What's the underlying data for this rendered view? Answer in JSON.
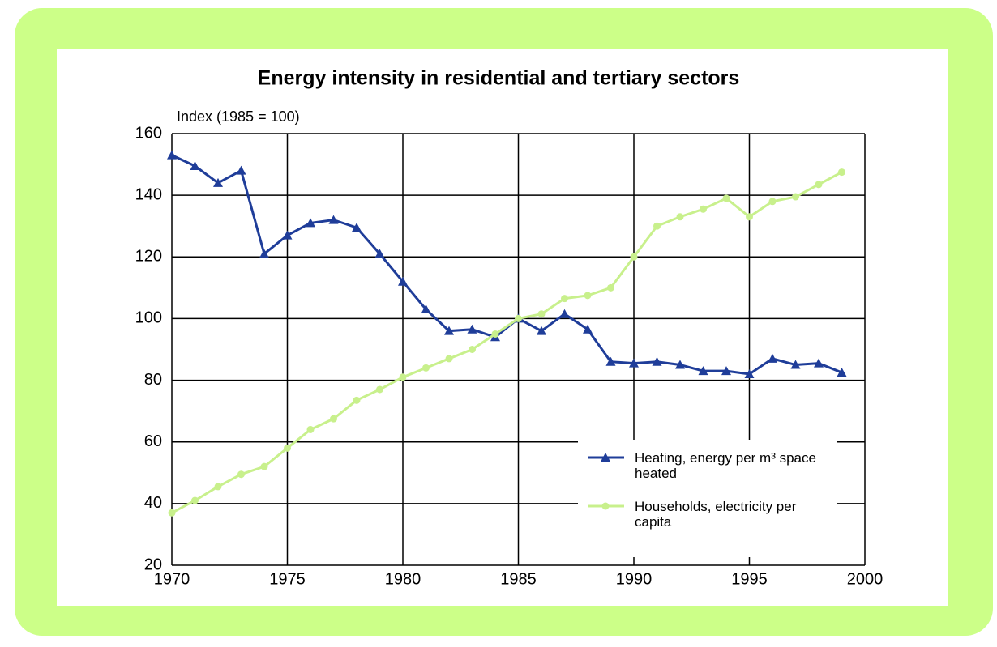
{
  "chart_data": {
    "type": "line",
    "title": "Energy intensity in residential and tertiary sectors",
    "ylabel": "Index (1985 = 100)",
    "x": [
      1970,
      1971,
      1972,
      1973,
      1974,
      1975,
      1976,
      1977,
      1978,
      1979,
      1980,
      1981,
      1982,
      1983,
      1984,
      1985,
      1986,
      1987,
      1988,
      1989,
      1990,
      1991,
      1992,
      1993,
      1994,
      1995,
      1996,
      1997,
      1998,
      1999
    ],
    "series": [
      {
        "name": "Heating, energy per m³ space heated",
        "color": "#1f3d99",
        "marker": "triangle",
        "values": [
          153,
          149.5,
          144,
          148,
          121,
          127,
          131,
          132,
          129.5,
          121,
          112,
          103,
          96,
          96.5,
          94,
          100,
          96,
          101.5,
          96.5,
          86,
          85.5,
          86,
          85,
          83,
          83,
          82,
          87,
          85,
          85.5,
          82.5
        ]
      },
      {
        "name": "Households, electricity per capita",
        "color": "#c8f08c",
        "marker": "circle",
        "values": [
          37,
          41,
          45.5,
          49.5,
          52,
          58,
          64,
          67.5,
          73.5,
          77,
          81,
          84,
          87,
          90,
          95,
          100,
          101.5,
          106.5,
          107.5,
          110,
          120,
          130,
          133,
          135.5,
          139,
          133,
          138,
          139.5,
          143.5,
          147.5
        ]
      }
    ],
    "xlim": [
      1970,
      2000
    ],
    "xticks": [
      1970,
      1975,
      1980,
      1985,
      1990,
      1995,
      2000
    ],
    "ylim": [
      20,
      160
    ],
    "yticks": [
      20,
      40,
      60,
      80,
      100,
      120,
      140,
      160
    ],
    "grid": true,
    "legend": "lower right"
  }
}
